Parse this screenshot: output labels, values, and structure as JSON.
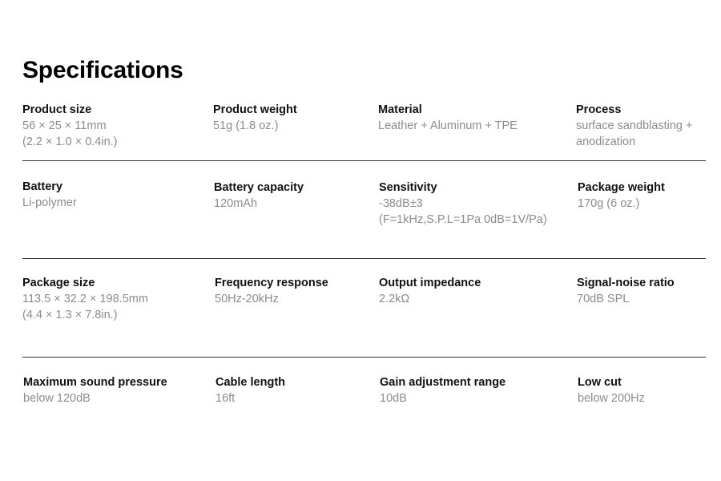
{
  "title": "Specifications",
  "rows": [
    [
      {
        "label": "Product size",
        "value": "56 × 25 × 11mm\n (2.2 × 1.0 × 0.4in.)"
      },
      {
        "label": "Product weight",
        "value": "51g (1.8 oz.)"
      },
      {
        "label": "Material",
        "value": "Leather + Aluminum + TPE"
      },
      {
        "label": "Process",
        "value": "surface sandblasting +\nanodization"
      }
    ],
    [
      {
        "label": "Battery",
        "value": "Li-polymer"
      },
      {
        "label": "Battery capacity",
        "value": "120mAh"
      },
      {
        "label": "Sensitivity",
        "value": "-38dB±3\n(F=1kHz,S.P.L=1Pa 0dB=1V/Pa)"
      },
      {
        "label": "Package weight",
        "value": "170g (6 oz.)"
      }
    ],
    [
      {
        "label": "Package size",
        "value": "113.5 × 32.2 × 198.5mm\n(4.4 × 1.3 × 7.8in.)"
      },
      {
        "label": "Frequency response",
        "value": "50Hz-20kHz"
      },
      {
        "label": "Output impedance",
        "value": "2.2kΩ"
      },
      {
        "label": "Signal-noise ratio",
        "value": "70dB SPL"
      }
    ],
    [
      {
        "label": "Maximum sound pressure",
        "value": "below 120dB"
      },
      {
        "label": "Cable length",
        "value": "16ft"
      },
      {
        "label": "Gain adjustment range",
        "value": "10dB"
      },
      {
        "label": "Low cut",
        "value": "below 200Hz"
      }
    ]
  ]
}
